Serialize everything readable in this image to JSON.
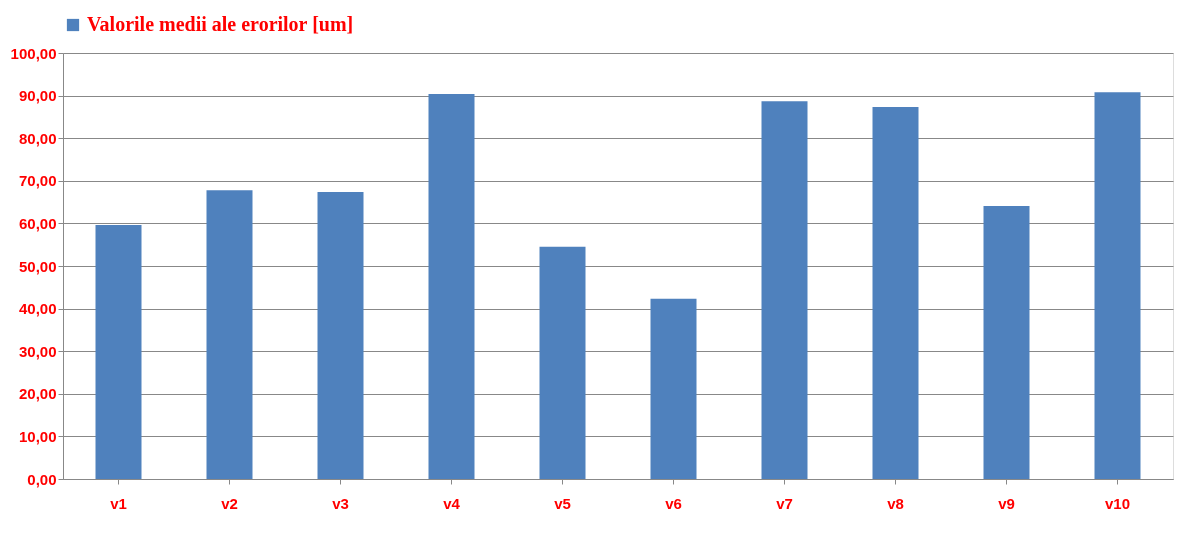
{
  "chart_data": {
    "type": "bar",
    "categories": [
      "v1",
      "v2",
      "v3",
      "v4",
      "v5",
      "v6",
      "v7",
      "v8",
      "v9",
      "v10"
    ],
    "series": [
      {
        "name": "Valorile  medii ale erorilor [um]",
        "color": "#4f81bd",
        "values": [
          59.6,
          67.8,
          67.4,
          90.4,
          54.5,
          42.3,
          88.7,
          87.3,
          64.1,
          90.8
        ]
      }
    ],
    "ylim": [
      0,
      100
    ],
    "yticks": [
      {
        "value": 0,
        "label": "0,00"
      },
      {
        "value": 10,
        "label": "10,00"
      },
      {
        "value": 20,
        "label": "20,00"
      },
      {
        "value": 30,
        "label": "30,00"
      },
      {
        "value": 40,
        "label": "40,00"
      },
      {
        "value": 50,
        "label": "50,00"
      },
      {
        "value": 60,
        "label": "60,00"
      },
      {
        "value": 70,
        "label": "70,00"
      },
      {
        "value": 80,
        "label": "80,00"
      },
      {
        "value": 90,
        "label": "90,00"
      },
      {
        "value": 100,
        "label": "100,00"
      }
    ],
    "grid": "y",
    "legend": "top"
  }
}
